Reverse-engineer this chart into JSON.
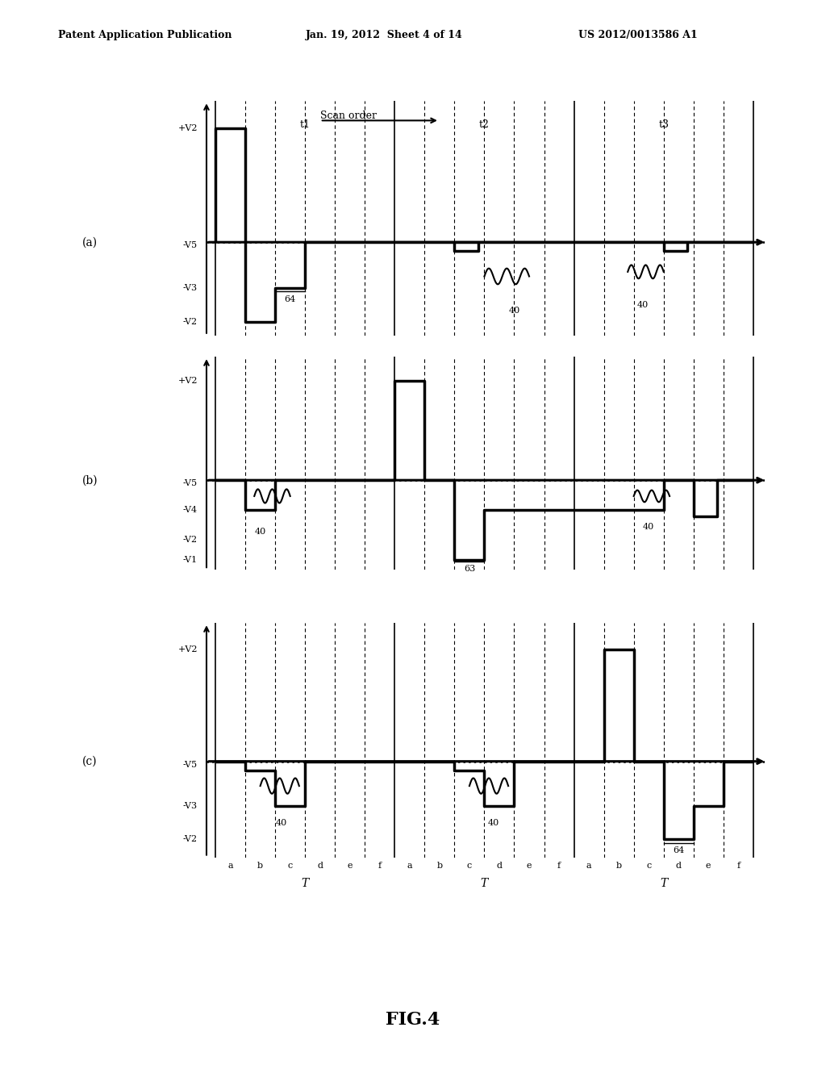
{
  "title": "FIG.4",
  "header_left": "Patent Application Publication",
  "header_center": "Jan. 19, 2012  Sheet 4 of 14",
  "header_right": "US 2012/0013586 A1",
  "scan_order_label": "Scan order",
  "background_color": "#ffffff",
  "subplots": [
    "(a)",
    "(b)",
    "(c)"
  ],
  "t_labels": [
    "t1",
    "t2",
    "t3"
  ],
  "period_label": "T",
  "abcdef": [
    "a",
    "b",
    "c",
    "d",
    "e",
    "f"
  ],
  "y_levels_a": {
    "V2p": 5.0,
    "V5n": 0.0,
    "V3n": -2.0,
    "V2n": -3.5
  },
  "y_levels_b": {
    "V2p": 5.0,
    "V5n": 0.0,
    "V5n_neg": -0.5,
    "V4n": -1.5,
    "V2n": -3.0,
    "V1n": -4.0
  },
  "y_levels_c": {
    "V2p": 5.0,
    "V5n": 0.0,
    "V5n_neg": -0.5,
    "V3n": -2.0,
    "V2n": -3.5
  }
}
